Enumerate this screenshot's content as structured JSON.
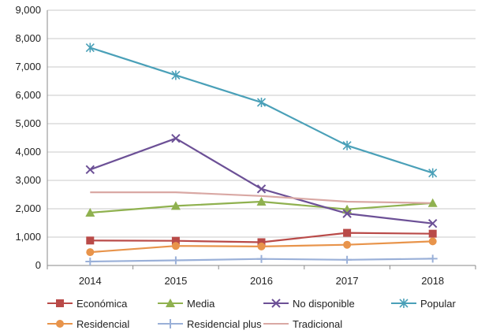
{
  "chart_data": {
    "type": "line",
    "categories": [
      "2014",
      "2015",
      "2016",
      "2017",
      "2018"
    ],
    "ylim": [
      0,
      9000
    ],
    "yticks": [
      "0",
      "1,000",
      "2,000",
      "3,000",
      "4,000",
      "5,000",
      "6,000",
      "7,000",
      "8,000",
      "9,000"
    ],
    "grid": true,
    "legend_position": "bottom",
    "series": [
      {
        "name": "Económica",
        "color": "#b94a48",
        "marker": "square",
        "values": [
          880,
          870,
          820,
          1150,
          1120
        ]
      },
      {
        "name": "Media",
        "color": "#8fb14f",
        "marker": "triangle",
        "values": [
          1860,
          2100,
          2250,
          1980,
          2200
        ]
      },
      {
        "name": "No disponible",
        "color": "#6c5096",
        "marker": "x",
        "values": [
          3380,
          4480,
          2700,
          1830,
          1480
        ]
      },
      {
        "name": "Popular",
        "color": "#4aa0b8",
        "marker": "star",
        "values": [
          7680,
          6710,
          5750,
          4230,
          3260
        ]
      },
      {
        "name": "Residencial",
        "color": "#e8944b",
        "marker": "circle",
        "values": [
          470,
          690,
          670,
          730,
          850
        ]
      },
      {
        "name": "Residencial plus",
        "color": "#9ab0d8",
        "marker": "plus",
        "values": [
          140,
          180,
          230,
          200,
          240
        ]
      },
      {
        "name": "Tradicional",
        "color": "#d9a8a4",
        "marker": "none",
        "values": [
          2580,
          2580,
          2450,
          2250,
          2200
        ]
      }
    ]
  }
}
